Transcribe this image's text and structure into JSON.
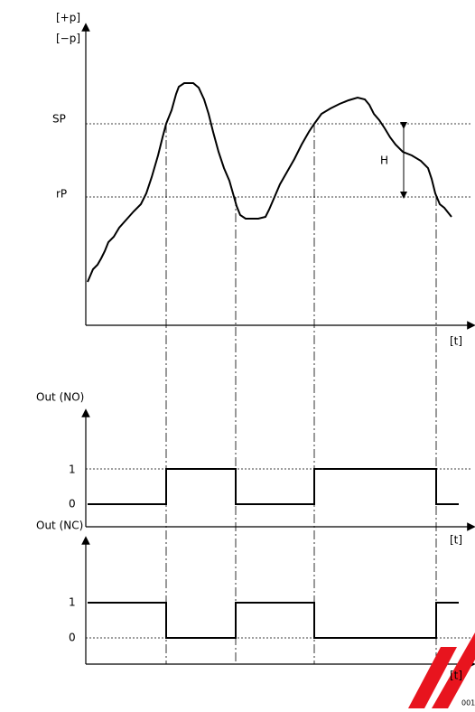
{
  "axis_labels": {
    "pressure_plus": "[+p]",
    "pressure_minus": "[−p]",
    "time": [
      "[t]",
      "[t]",
      "[t]"
    ]
  },
  "levels": {
    "setpoint": "SP",
    "reset_point": "rP",
    "hysteresis": "H"
  },
  "outputs": [
    {
      "label": "Out (NO)",
      "high": "1",
      "low": "0"
    },
    {
      "label": "Out (NC)",
      "high": "1",
      "low": "0"
    }
  ],
  "figure_code": "001"
}
